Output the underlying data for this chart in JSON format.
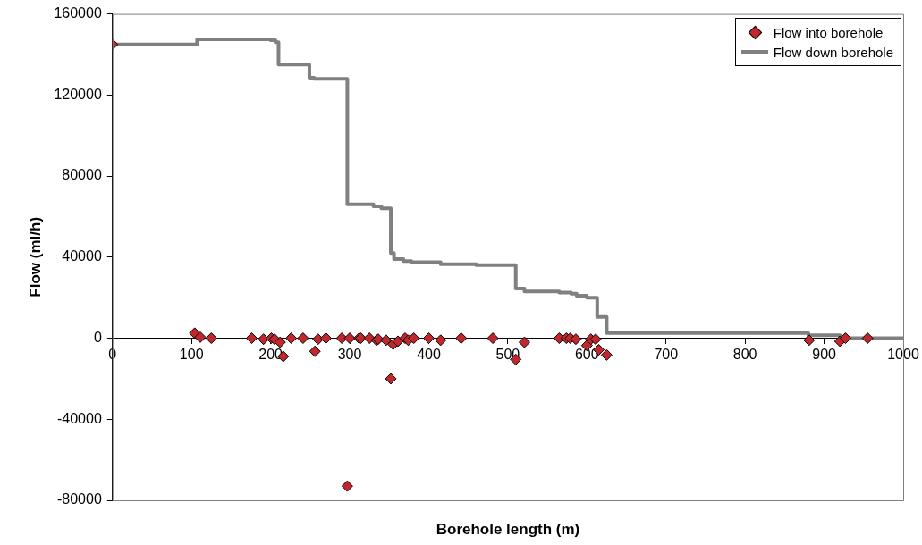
{
  "chart_data": {
    "type": "scatter",
    "xlabel": "Borehole length (m)",
    "ylabel": "Flow (ml/h)",
    "xlim": [
      0,
      1000
    ],
    "xticks": [
      0,
      100,
      200,
      300,
      400,
      500,
      600,
      700,
      800,
      900,
      1000
    ],
    "ylim": [
      -80000,
      160000
    ],
    "yticks": [
      -80000,
      -40000,
      0,
      40000,
      80000,
      120000,
      160000
    ],
    "grid": false,
    "legend": "top right",
    "series": [
      {
        "marker": "diamond",
        "name": "Flow into borehole",
        "color": "#c1272d",
        "x": [
          0,
          104,
          111,
          125,
          176,
          191,
          201,
          205,
          212,
          216,
          226,
          241,
          256,
          260,
          270,
          290,
          297,
          300,
          312,
          314,
          325,
          334,
          336,
          346,
          352,
          355,
          361,
          370,
          374,
          381,
          400,
          415,
          441,
          481,
          510,
          521,
          565,
          574,
          579,
          586,
          600,
          605,
          611,
          615,
          625,
          881,
          920,
          927,
          955
        ],
        "values": [
          145000,
          2500,
          500,
          0,
          0,
          -500,
          0,
          -500,
          -2000,
          -9000,
          0,
          0,
          -6500,
          -500,
          0,
          0,
          -73000,
          0,
          0,
          0,
          0,
          -1000,
          -500,
          -1000,
          -20000,
          -3000,
          -1500,
          0,
          -1000,
          0,
          0,
          -1000,
          0,
          0,
          -10500,
          -2000,
          0,
          0,
          0,
          -500,
          -3600,
          -500,
          -500,
          -5700,
          -8300,
          -1000,
          -1500,
          0,
          0
        ]
      },
      {
        "type": "step",
        "name": "Flow down borehole",
        "color": "#808080",
        "x": [
          0,
          107,
          200,
          206,
          210,
          249,
          255,
          297,
          330,
          340,
          352,
          356,
          368,
          378,
          415,
          460,
          510,
          521,
          565,
          580,
          587,
          600,
          613,
          625,
          880,
          920,
          1000
        ],
        "values": [
          145000,
          147500,
          147000,
          146000,
          135000,
          128500,
          128000,
          66000,
          65000,
          64000,
          42000,
          39000,
          38000,
          37500,
          36500,
          36000,
          24500,
          23000,
          22500,
          22000,
          21000,
          20000,
          10500,
          2500,
          1400,
          0,
          0
        ]
      }
    ]
  }
}
